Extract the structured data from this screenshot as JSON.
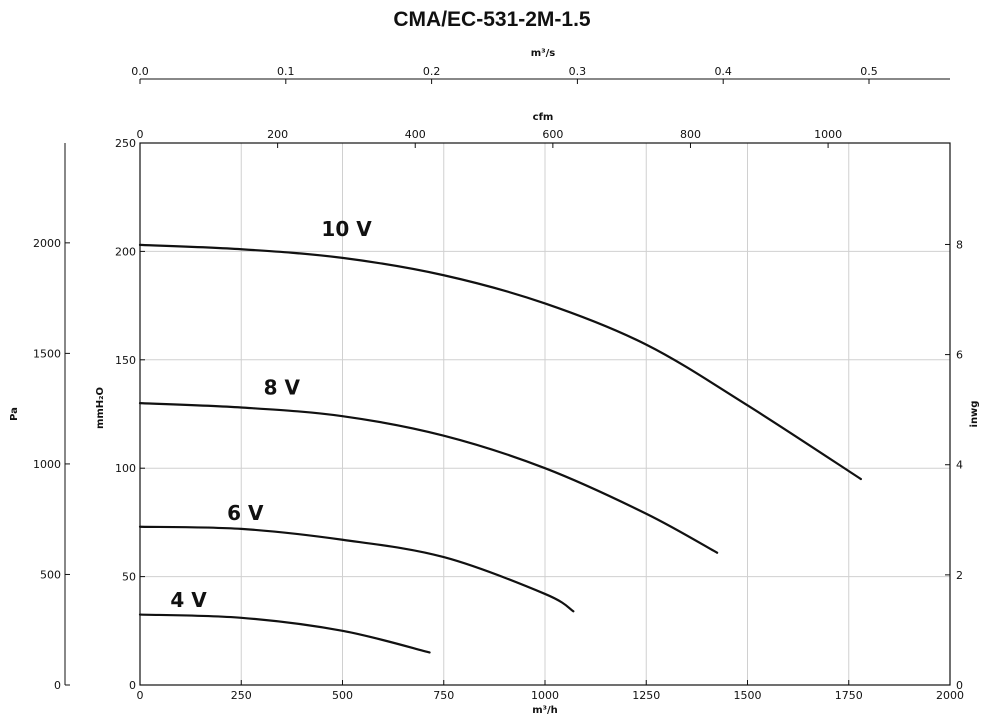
{
  "chart_data": {
    "type": "line",
    "title": "CMA/EC-531-2M-1.5",
    "xlabel": "m³/h",
    "ylabel": "mmH₂O",
    "xlim": [
      0,
      2000
    ],
    "ylim": [
      0,
      250
    ],
    "grid": true,
    "x_ticks": [
      "0",
      "250",
      "500",
      "750",
      "1000",
      "1250",
      "1500",
      "1750",
      "2000"
    ],
    "y_ticks": [
      "0",
      "50",
      "100",
      "150",
      "200",
      "250"
    ],
    "secondary_axes": {
      "top_outer": {
        "label": "m³/s",
        "ticks": [
          "0.0",
          "0.1",
          "0.2",
          "0.3",
          "0.4",
          "0.5"
        ]
      },
      "top_inner": {
        "label": "cfm",
        "ticks": [
          "0",
          "200",
          "400",
          "600",
          "800",
          "1000"
        ]
      },
      "left_outer": {
        "label": "Pa",
        "ticks": [
          "0",
          "500",
          "1000",
          "1500",
          "2000"
        ]
      },
      "right": {
        "label": "inwg",
        "ticks": [
          "0",
          "2",
          "4",
          "6",
          "8"
        ]
      }
    },
    "series": [
      {
        "name": "10 V",
        "x": [
          0,
          250,
          500,
          750,
          1000,
          1250,
          1500,
          1780
        ],
        "y": [
          203,
          201,
          197,
          189,
          176,
          157,
          129,
          95
        ]
      },
      {
        "name": "8 V",
        "x": [
          0,
          250,
          500,
          750,
          1000,
          1250,
          1425
        ],
        "y": [
          130,
          128,
          124,
          115,
          100,
          79,
          61
        ]
      },
      {
        "name": "6 V",
        "x": [
          0,
          250,
          500,
          750,
          1000,
          1070
        ],
        "y": [
          73,
          72,
          67,
          59,
          42,
          34
        ]
      },
      {
        "name": "4 V",
        "x": [
          0,
          250,
          500,
          715
        ],
        "y": [
          32.5,
          31,
          25,
          15
        ]
      }
    ],
    "curve_labels": [
      {
        "text": "10 V",
        "x": 510,
        "y": 207
      },
      {
        "text": "8 V",
        "x": 350,
        "y": 134
      },
      {
        "text": "6 V",
        "x": 260,
        "y": 76
      },
      {
        "text": "4 V",
        "x": 120,
        "y": 36
      }
    ]
  }
}
